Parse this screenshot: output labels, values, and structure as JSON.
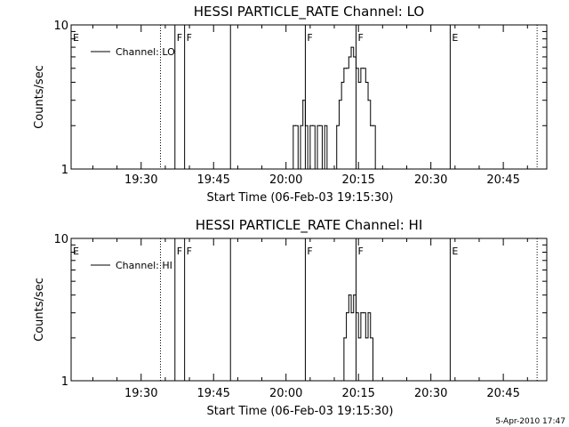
{
  "footer": {
    "date": "5-Apr-2010 17:47"
  },
  "chart_data": [
    {
      "type": "line",
      "title": "HESSI PARTICLE_RATE Channel: LO",
      "xlabel": "Start Time (06-Feb-03 19:15:30)",
      "ylabel": "Counts/sec",
      "xlim": [
        "19:15:30",
        "20:54:00"
      ],
      "ylim": [
        1,
        10
      ],
      "yscale": "log",
      "x_ticks": [
        "19:30",
        "19:45",
        "20:00",
        "20:15",
        "20:30",
        "20:45"
      ],
      "y_ticks": [
        "1",
        "10"
      ],
      "legend": {
        "position": "top-left",
        "entries": [
          "Channel: LO"
        ]
      },
      "flag_lines": [
        {
          "time": "19:15:30",
          "label": "E",
          "style": "dotted"
        },
        {
          "time": "19:34:00",
          "label": "",
          "style": "dotted"
        },
        {
          "time": "19:37:00",
          "label": "F",
          "style": "solid"
        },
        {
          "time": "19:39:00",
          "label": "F",
          "style": "solid"
        },
        {
          "time": "19:48:30",
          "label": "",
          "style": "solid"
        },
        {
          "time": "20:04:00",
          "label": "F",
          "style": "solid"
        },
        {
          "time": "20:14:30",
          "label": "F",
          "style": "solid"
        },
        {
          "time": "20:34:00",
          "label": "E",
          "style": "solid"
        },
        {
          "time": "20:52:00",
          "label": "",
          "style": "dotted"
        }
      ],
      "series": [
        {
          "name": "Channel: LO",
          "x": [
            "20:01:00",
            "20:01:30",
            "20:02:00",
            "20:02:30",
            "20:03:00",
            "20:03:30",
            "20:04:00",
            "20:04:30",
            "20:05:00",
            "20:05:30",
            "20:06:00",
            "20:06:30",
            "20:07:00",
            "20:07:30",
            "20:08:00",
            "20:08:30",
            "20:09:00",
            "20:09:30",
            "20:10:00",
            "20:10:30",
            "20:11:00",
            "20:11:30",
            "20:12:00",
            "20:12:30",
            "20:13:00",
            "20:13:30",
            "20:14:00",
            "20:14:30",
            "20:15:00",
            "20:15:30",
            "20:16:00",
            "20:16:30",
            "20:17:00",
            "20:17:30",
            "20:18:00",
            "20:18:30",
            "20:19:00",
            "20:19:30",
            "20:20:00",
            "20:20:30",
            "20:21:00"
          ],
          "values": [
            1,
            2,
            2,
            1,
            2,
            3,
            2,
            1,
            2,
            2,
            1,
            2,
            2,
            1,
            2,
            1,
            1,
            1,
            1,
            2,
            3,
            4,
            5,
            5,
            6,
            7,
            6,
            5,
            4,
            5,
            5,
            4,
            3,
            2,
            2,
            1,
            1,
            1,
            1,
            1,
            1
          ]
        }
      ]
    },
    {
      "type": "line",
      "title": "HESSI PARTICLE_RATE Channel: HI",
      "xlabel": "Start Time (06-Feb-03 19:15:30)",
      "ylabel": "Counts/sec",
      "xlim": [
        "19:15:30",
        "20:54:00"
      ],
      "ylim": [
        1,
        10
      ],
      "yscale": "log",
      "x_ticks": [
        "19:30",
        "19:45",
        "20:00",
        "20:15",
        "20:30",
        "20:45"
      ],
      "y_ticks": [
        "1",
        "10"
      ],
      "legend": {
        "position": "top-left",
        "entries": [
          "Channel: HI"
        ]
      },
      "flag_lines": [
        {
          "time": "19:15:30",
          "label": "E",
          "style": "dotted"
        },
        {
          "time": "19:34:00",
          "label": "",
          "style": "dotted"
        },
        {
          "time": "19:37:00",
          "label": "F",
          "style": "solid"
        },
        {
          "time": "19:39:00",
          "label": "F",
          "style": "solid"
        },
        {
          "time": "19:48:30",
          "label": "",
          "style": "solid"
        },
        {
          "time": "20:04:00",
          "label": "F",
          "style": "solid"
        },
        {
          "time": "20:14:30",
          "label": "F",
          "style": "solid"
        },
        {
          "time": "20:34:00",
          "label": "E",
          "style": "solid"
        },
        {
          "time": "20:52:00",
          "label": "",
          "style": "dotted"
        }
      ],
      "series": [
        {
          "name": "Channel: HI",
          "x": [
            "20:11:30",
            "20:12:00",
            "20:12:30",
            "20:13:00",
            "20:13:30",
            "20:14:00",
            "20:14:30",
            "20:15:00",
            "20:15:30",
            "20:16:00",
            "20:16:30",
            "20:17:00",
            "20:17:30",
            "20:18:00"
          ],
          "values": [
            1,
            2,
            3,
            4,
            3,
            4,
            3,
            2,
            3,
            3,
            2,
            3,
            2,
            1
          ]
        }
      ]
    }
  ]
}
